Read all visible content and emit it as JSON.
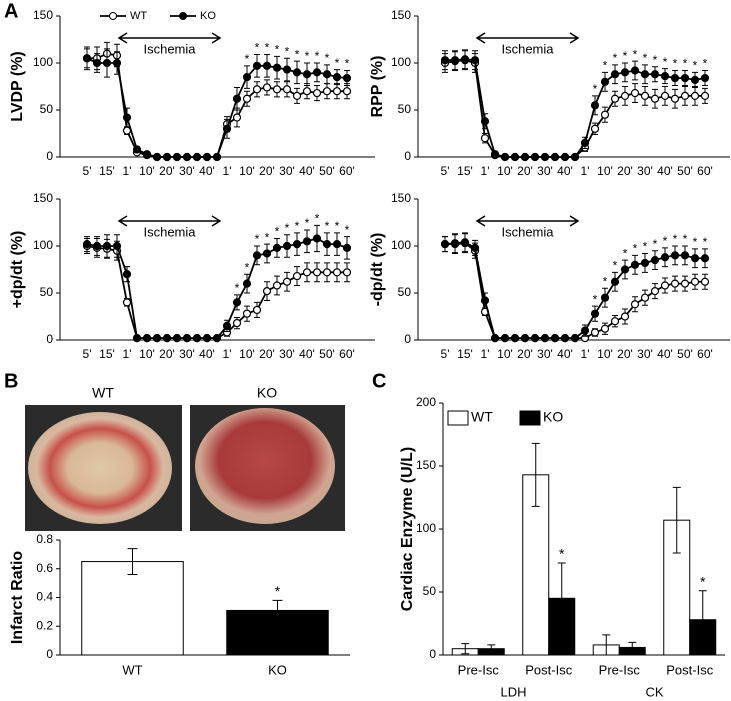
{
  "figure": {
    "panels": [
      "A",
      "B",
      "C"
    ],
    "image_labels": [
      "WT",
      "KO"
    ]
  },
  "chart_data": [
    {
      "type": "line",
      "ylabel": "LVDP (%)",
      "annotation": "Ischemia",
      "legend": true,
      "categories": [
        "5'",
        null,
        "15'",
        null,
        "1'",
        null,
        "10'",
        null,
        "20'",
        null,
        "30'",
        null,
        "40'",
        null,
        "1'",
        null,
        "10'",
        null,
        "20'",
        null,
        "30'",
        null,
        "40'",
        null,
        "50'",
        null,
        "60'"
      ],
      "ylim": [
        0,
        150
      ],
      "yticks": [
        0,
        50,
        100,
        150
      ],
      "series": [
        {
          "name": "WT",
          "color": "#000",
          "marker_fill": "#fff",
          "values": [
            105,
            105,
            110,
            108,
            28,
            5,
            2,
            0,
            0,
            0,
            0,
            0,
            0,
            0,
            35,
            42,
            62,
            72,
            74,
            72,
            72,
            65,
            70,
            68,
            70,
            70,
            70
          ],
          "errors": [
            10,
            12,
            12,
            12,
            4,
            2,
            1,
            0,
            0,
            0,
            0,
            0,
            0,
            0,
            8,
            10,
            8,
            8,
            8,
            8,
            8,
            8,
            8,
            8,
            8,
            8,
            8
          ]
        },
        {
          "name": "KO",
          "color": "#000",
          "marker_fill": "#000",
          "values": [
            105,
            100,
            100,
            100,
            42,
            8,
            3,
            0,
            0,
            0,
            0,
            0,
            0,
            0,
            30,
            62,
            85,
            97,
            97,
            95,
            93,
            90,
            88,
            90,
            88,
            85,
            84
          ],
          "errors": [
            12,
            10,
            15,
            12,
            10,
            3,
            2,
            0,
            0,
            0,
            0,
            0,
            0,
            0,
            10,
            12,
            12,
            12,
            12,
            12,
            12,
            12,
            12,
            10,
            10,
            8,
            8
          ]
        }
      ],
      "stars": [
        null,
        null,
        null,
        null,
        null,
        null,
        null,
        null,
        null,
        null,
        null,
        null,
        null,
        null,
        null,
        null,
        "*",
        "*",
        "*",
        "*",
        "*",
        "*",
        "*",
        "*",
        "*",
        "*",
        "*"
      ]
    },
    {
      "type": "line",
      "ylabel": "RPP (%)",
      "annotation": "Ischemia",
      "categories": [
        "5'",
        null,
        "15'",
        null,
        "1'",
        null,
        "10'",
        null,
        "20'",
        null,
        "30'",
        null,
        "40'",
        null,
        "1'",
        null,
        "10'",
        null,
        "20'",
        null,
        "30'",
        null,
        "40'",
        null,
        "50'",
        null,
        "60'"
      ],
      "ylim": [
        0,
        150
      ],
      "yticks": [
        0,
        50,
        100,
        150
      ],
      "series": [
        {
          "color": "#000",
          "marker_fill": "#fff",
          "values": [
            100,
            102,
            103,
            100,
            20,
            2,
            0,
            0,
            0,
            0,
            0,
            0,
            0,
            0,
            10,
            30,
            45,
            62,
            65,
            68,
            65,
            62,
            65,
            62,
            65,
            65,
            65
          ],
          "errors": [
            10,
            10,
            10,
            10,
            5,
            1,
            0,
            0,
            0,
            0,
            0,
            0,
            0,
            0,
            4,
            6,
            8,
            8,
            10,
            10,
            10,
            10,
            10,
            10,
            10,
            10,
            8
          ]
        },
        {
          "color": "#000",
          "marker_fill": "#000",
          "values": [
            103,
            103,
            104,
            103,
            38,
            3,
            0,
            0,
            0,
            0,
            0,
            0,
            0,
            0,
            15,
            55,
            80,
            88,
            90,
            92,
            88,
            88,
            86,
            84,
            84,
            82,
            84
          ],
          "errors": [
            10,
            10,
            10,
            10,
            8,
            1,
            0,
            0,
            0,
            0,
            0,
            0,
            0,
            0,
            6,
            10,
            10,
            10,
            10,
            10,
            10,
            8,
            8,
            8,
            8,
            8,
            8
          ]
        }
      ],
      "stars": [
        null,
        null,
        null,
        null,
        null,
        null,
        null,
        null,
        null,
        null,
        null,
        null,
        null,
        null,
        null,
        "*",
        "*",
        "*",
        "*",
        "*",
        "*",
        "*",
        "*",
        "*",
        "*",
        "*",
        "*"
      ]
    },
    {
      "type": "line",
      "ylabel": "+dp/dt (%)",
      "annotation": "Ischemia",
      "categories": [
        "5'",
        null,
        "15'",
        null,
        "1'",
        null,
        "10'",
        null,
        "20'",
        null,
        "30'",
        null,
        "40'",
        null,
        "1'",
        null,
        "10'",
        null,
        "20'",
        null,
        "30'",
        null,
        "40'",
        null,
        "50'",
        null,
        "60'"
      ],
      "ylim": [
        0,
        150
      ],
      "yticks": [
        0,
        50,
        100,
        150
      ],
      "series": [
        {
          "color": "#000",
          "marker_fill": "#fff",
          "values": [
            100,
            98,
            97,
            95,
            40,
            2,
            2,
            2,
            2,
            2,
            2,
            2,
            2,
            2,
            8,
            18,
            28,
            32,
            52,
            58,
            62,
            68,
            72,
            72,
            72,
            72,
            72
          ],
          "errors": [
            8,
            10,
            10,
            10,
            4,
            1,
            0,
            0,
            0,
            0,
            0,
            0,
            0,
            0,
            4,
            6,
            8,
            8,
            10,
            10,
            10,
            10,
            10,
            10,
            10,
            10,
            10
          ]
        },
        {
          "color": "#000",
          "marker_fill": "#000",
          "values": [
            102,
            100,
            100,
            100,
            70,
            2,
            2,
            2,
            2,
            2,
            2,
            2,
            2,
            2,
            15,
            40,
            60,
            90,
            92,
            98,
            100,
            102,
            105,
            108,
            102,
            102,
            98
          ],
          "errors": [
            8,
            10,
            12,
            12,
            8,
            1,
            0,
            0,
            0,
            0,
            0,
            0,
            0,
            0,
            6,
            8,
            10,
            10,
            10,
            10,
            12,
            12,
            12,
            14,
            12,
            12,
            12
          ]
        }
      ],
      "stars": [
        null,
        null,
        null,
        null,
        null,
        null,
        null,
        null,
        null,
        null,
        null,
        null,
        null,
        null,
        null,
        "*",
        "*",
        "*",
        "*",
        "*",
        "*",
        "*",
        "*",
        "*",
        "*",
        "*",
        "*"
      ]
    },
    {
      "type": "line",
      "ylabel": "-dp/dt (%)",
      "annotation": "Ischemia",
      "categories": [
        "5'",
        null,
        "15'",
        null,
        "1'",
        null,
        "10'",
        null,
        "20'",
        null,
        "30'",
        null,
        "40'",
        null,
        "1'",
        null,
        "10'",
        null,
        "20'",
        null,
        "30'",
        null,
        "40'",
        null,
        "50'",
        null,
        "60'"
      ],
      "ylim": [
        0,
        150
      ],
      "yticks": [
        0,
        50,
        100,
        150
      ],
      "series": [
        {
          "color": "#000",
          "marker_fill": "#fff",
          "values": [
            102,
            102,
            103,
            95,
            30,
            2,
            2,
            2,
            2,
            2,
            2,
            2,
            2,
            2,
            2,
            8,
            12,
            20,
            25,
            38,
            45,
            52,
            58,
            60,
            60,
            62,
            62
          ],
          "errors": [
            8,
            10,
            10,
            8,
            4,
            1,
            0,
            0,
            0,
            0,
            0,
            0,
            0,
            0,
            2,
            4,
            6,
            6,
            8,
            8,
            8,
            8,
            8,
            8,
            8,
            8,
            8
          ]
        },
        {
          "color": "#000",
          "marker_fill": "#000",
          "values": [
            102,
            103,
            104,
            98,
            42,
            2,
            2,
            2,
            2,
            2,
            2,
            2,
            2,
            2,
            10,
            28,
            45,
            62,
            75,
            80,
            82,
            85,
            88,
            90,
            90,
            87,
            87
          ],
          "errors": [
            8,
            10,
            10,
            8,
            8,
            1,
            0,
            0,
            0,
            0,
            0,
            0,
            0,
            0,
            6,
            8,
            10,
            10,
            10,
            10,
            10,
            10,
            10,
            10,
            10,
            10,
            10
          ]
        }
      ],
      "stars": [
        null,
        null,
        null,
        null,
        null,
        null,
        null,
        null,
        null,
        null,
        null,
        null,
        null,
        null,
        null,
        "*",
        "*",
        "*",
        "*",
        "*",
        "*",
        "*",
        "*",
        "*",
        "*",
        "*",
        "*"
      ]
    },
    {
      "type": "bar",
      "ylabel": "Infarct Ratio",
      "categories": [
        "WT",
        "KO"
      ],
      "values": [
        0.65,
        0.31
      ],
      "errors": [
        0.09,
        0.07
      ],
      "colors": [
        "#fff",
        "#000"
      ],
      "ylim": [
        0,
        0.8
      ],
      "yticks": [
        0,
        0.2,
        0.4,
        0.6,
        0.8
      ],
      "stars": [
        null,
        "*"
      ]
    },
    {
      "type": "grouped_bar",
      "ylabel": "Cardiac Enzyme (U/L)",
      "categories": [
        "Pre-Isc",
        "Post-Isc",
        "Pre-Isc",
        "Post-Isc"
      ],
      "groups": [
        "LDH",
        "CK"
      ],
      "ylim": [
        0,
        200
      ],
      "yticks": [
        0,
        50,
        100,
        150,
        200
      ],
      "legend": true,
      "series": [
        {
          "name": "WT",
          "color": "#fff",
          "values": [
            5,
            143,
            8,
            107
          ],
          "errors": [
            4,
            25,
            8,
            26
          ]
        },
        {
          "name": "KO",
          "color": "#000",
          "values": [
            5,
            45,
            6,
            28
          ],
          "errors": [
            3,
            28,
            4,
            23
          ],
          "stars": [
            null,
            "*",
            null,
            "*"
          ]
        }
      ]
    }
  ]
}
